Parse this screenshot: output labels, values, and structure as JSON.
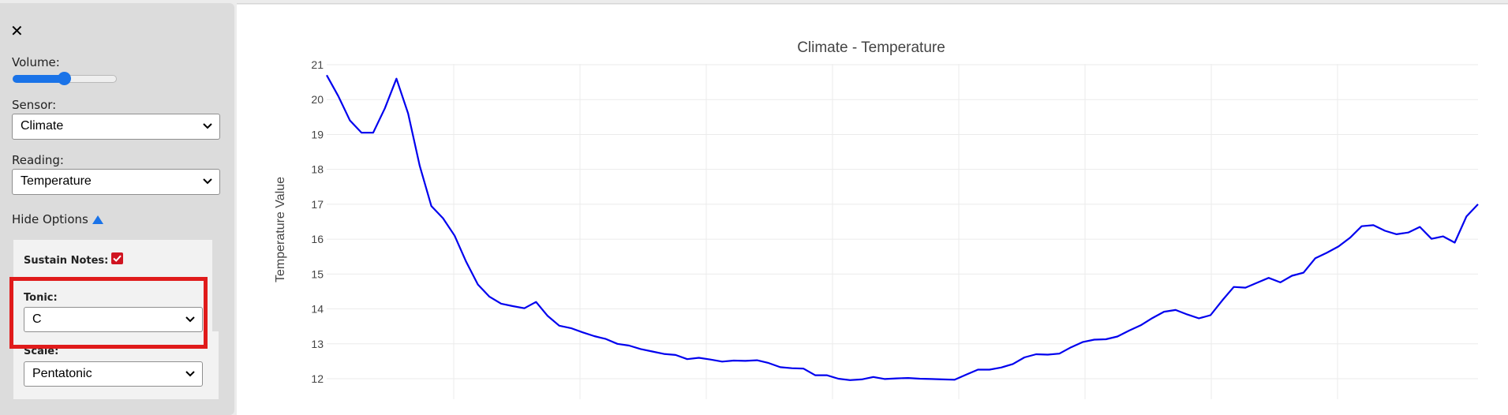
{
  "sidebar": {
    "volume_label": "Volume:",
    "volume_level": 0.5,
    "sensor_label": "Sensor:",
    "sensor_value": "Climate",
    "reading_label": "Reading:",
    "reading_value": "Temperature",
    "toggle_label": "Hide Options",
    "sustain_label": "Sustain Notes:",
    "sustain_checked": true,
    "tonic_label": "Tonic:",
    "tonic_value": "C",
    "scale_label": "Scale:",
    "scale_value": "Pentatonic"
  },
  "colors": {
    "accent": "#1a73e8",
    "line": "#0000ee",
    "highlight": "#e01b1b",
    "checkbox": "#d01521"
  },
  "chart_data": {
    "type": "line",
    "title": "Climate - Temperature",
    "ylabel": "Temperature Value",
    "xlabel": "",
    "ylim": [
      11.6,
      21
    ],
    "yticks": [
      12,
      13,
      14,
      15,
      16,
      17,
      18,
      19,
      20,
      21
    ],
    "grid": true,
    "series": [
      {
        "values": [
          20.7,
          20.1,
          19.4,
          19.05,
          19.05,
          19.75,
          20.6,
          19.6,
          18.1,
          16.95,
          16.6,
          16.1,
          15.35,
          14.7,
          14.35,
          14.15,
          14.08,
          14.02,
          14.2,
          13.8,
          13.52,
          13.45,
          13.33,
          13.22,
          13.14,
          13.0,
          12.95,
          12.85,
          12.78,
          12.71,
          12.68,
          12.56,
          12.6,
          12.55,
          12.49,
          12.52,
          12.51,
          12.53,
          12.45,
          12.33,
          12.3,
          12.29,
          12.1,
          12.1,
          12.0,
          11.96,
          11.98,
          12.05,
          11.99,
          12.01,
          12.02,
          12.0,
          11.99,
          11.98,
          11.97,
          12.12,
          12.26,
          12.26,
          12.32,
          12.42,
          12.61,
          12.7,
          12.69,
          12.72,
          12.9,
          13.05,
          13.12,
          13.13,
          13.21,
          13.38,
          13.53,
          13.74,
          13.92,
          13.97,
          13.84,
          13.73,
          13.82,
          14.24,
          14.63,
          14.61,
          14.75,
          14.89,
          14.76,
          14.95,
          15.04,
          15.45,
          15.61,
          15.79,
          16.04,
          16.37,
          16.4,
          16.24,
          16.14,
          16.19,
          16.35,
          16.01,
          16.08,
          15.9,
          16.65,
          17.0
        ]
      }
    ]
  }
}
